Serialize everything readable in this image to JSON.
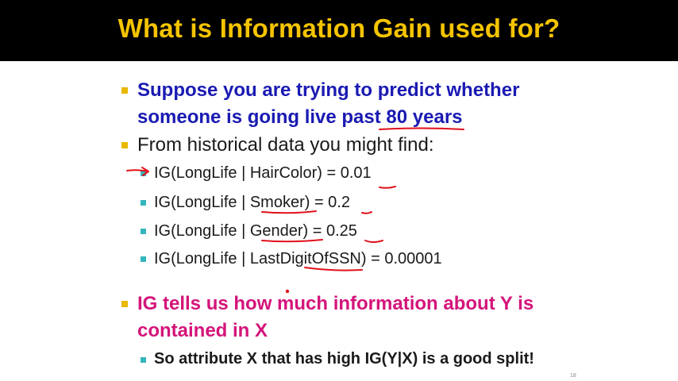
{
  "slide": {
    "title": "What is Information Gain used for?",
    "bullet1": {
      "line1": "Suppose you are trying to predict whether",
      "line2": "someone is going live past 80 years"
    },
    "bullet2": "From historical data you might find:",
    "sub_items": [
      "IG(LongLife | HairColor) = 0.01",
      "IG(LongLife | Smoker) = 0.2",
      "IG(LongLife | Gender) = 0.25",
      "IG(LongLife | LastDigitOfSSN) = 0.00001"
    ],
    "bullet3": {
      "line1": "IG tells us how much information about Y is",
      "line2": "contained in X"
    },
    "sub_item_final": "So attribute X that has high IG(Y|X) is a good split!",
    "page_number": "18"
  },
  "colors": {
    "title_text": "#f5c400",
    "title_bar": "#000000",
    "blue_text": "#1a1ab3",
    "magenta_text": "#d4147a",
    "bullet_l1": "#e8b800",
    "bullet_l2": "#35b5bd",
    "annotation_ink": "#e0101a"
  }
}
